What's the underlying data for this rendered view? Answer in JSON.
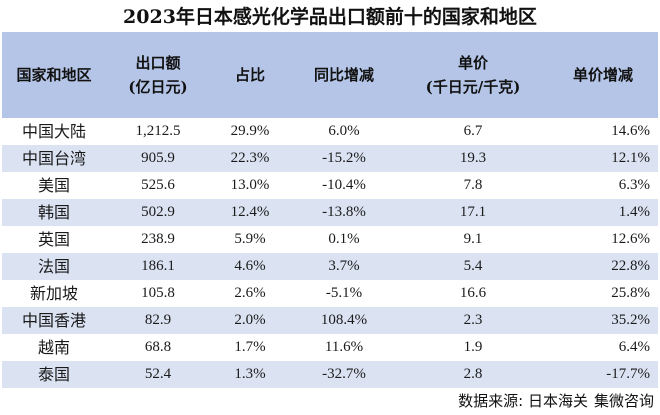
{
  "title": "2023年日本感光化学品出口额前十的国家和地区",
  "table": {
    "headers": [
      {
        "line1": "国家和地区",
        "line2": ""
      },
      {
        "line1": "出口额",
        "line2": "(亿日元)"
      },
      {
        "line1": "占比",
        "line2": ""
      },
      {
        "line1": "同比增减",
        "line2": ""
      },
      {
        "line1": "单价",
        "line2": "(千日元/千克)"
      },
      {
        "line1": "单价增减",
        "line2": ""
      }
    ],
    "rows": [
      {
        "region": "中国大陆",
        "export": "1,212.5",
        "share": "29.9%",
        "yoy": "6.0%",
        "unit_price": "6.7",
        "price_change": "14.6%"
      },
      {
        "region": "中国台湾",
        "export": "905.9",
        "share": "22.3%",
        "yoy": "-15.2%",
        "unit_price": "19.3",
        "price_change": "12.1%"
      },
      {
        "region": "美国",
        "export": "525.6",
        "share": "13.0%",
        "yoy": "-10.4%",
        "unit_price": "7.8",
        "price_change": "6.3%"
      },
      {
        "region": "韩国",
        "export": "502.9",
        "share": "12.4%",
        "yoy": "-13.8%",
        "unit_price": "17.1",
        "price_change": "1.4%"
      },
      {
        "region": "英国",
        "export": "238.9",
        "share": "5.9%",
        "yoy": "0.1%",
        "unit_price": "9.1",
        "price_change": "12.6%"
      },
      {
        "region": "法国",
        "export": "186.1",
        "share": "4.6%",
        "yoy": "3.7%",
        "unit_price": "5.4",
        "price_change": "22.8%"
      },
      {
        "region": "新加坡",
        "export": "105.8",
        "share": "2.6%",
        "yoy": "-5.1%",
        "unit_price": "16.6",
        "price_change": "25.8%"
      },
      {
        "region": "中国香港",
        "export": "82.9",
        "share": "2.0%",
        "yoy": "108.4%",
        "unit_price": "2.3",
        "price_change": "35.2%"
      },
      {
        "region": "越南",
        "export": "68.8",
        "share": "1.7%",
        "yoy": "11.6%",
        "unit_price": "1.9",
        "price_change": "6.4%"
      },
      {
        "region": "泰国",
        "export": "52.4",
        "share": "1.3%",
        "yoy": "-32.7%",
        "unit_price": "2.8",
        "price_change": "-17.7%"
      }
    ]
  },
  "source": {
    "label": "数据来源:",
    "sources": [
      "日本海关",
      "集微咨询"
    ]
  },
  "colors": {
    "header_bg": "#b4c5e7",
    "band_bg": "#dbe3f3"
  }
}
